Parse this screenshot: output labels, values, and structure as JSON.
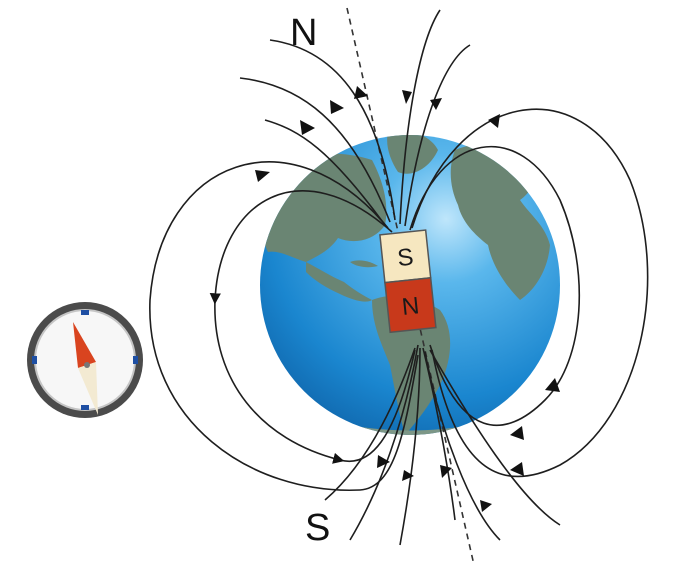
{
  "labels": {
    "geographic_north": "N",
    "geographic_south": "S",
    "magnet_top": "S",
    "magnet_bottom": "N"
  },
  "colors": {
    "ocean": "#1f8fd6",
    "land": "#6a8573",
    "magnet_top": "#f6e7c0",
    "magnet_bottom": "#c8391b",
    "compass_needle_north": "#d9441f",
    "compass_needle_south": "#f3ead2",
    "compass_ring": "#6e6e6e"
  },
  "icons": {
    "compass": "compass-icon",
    "globe": "earth-globe"
  }
}
